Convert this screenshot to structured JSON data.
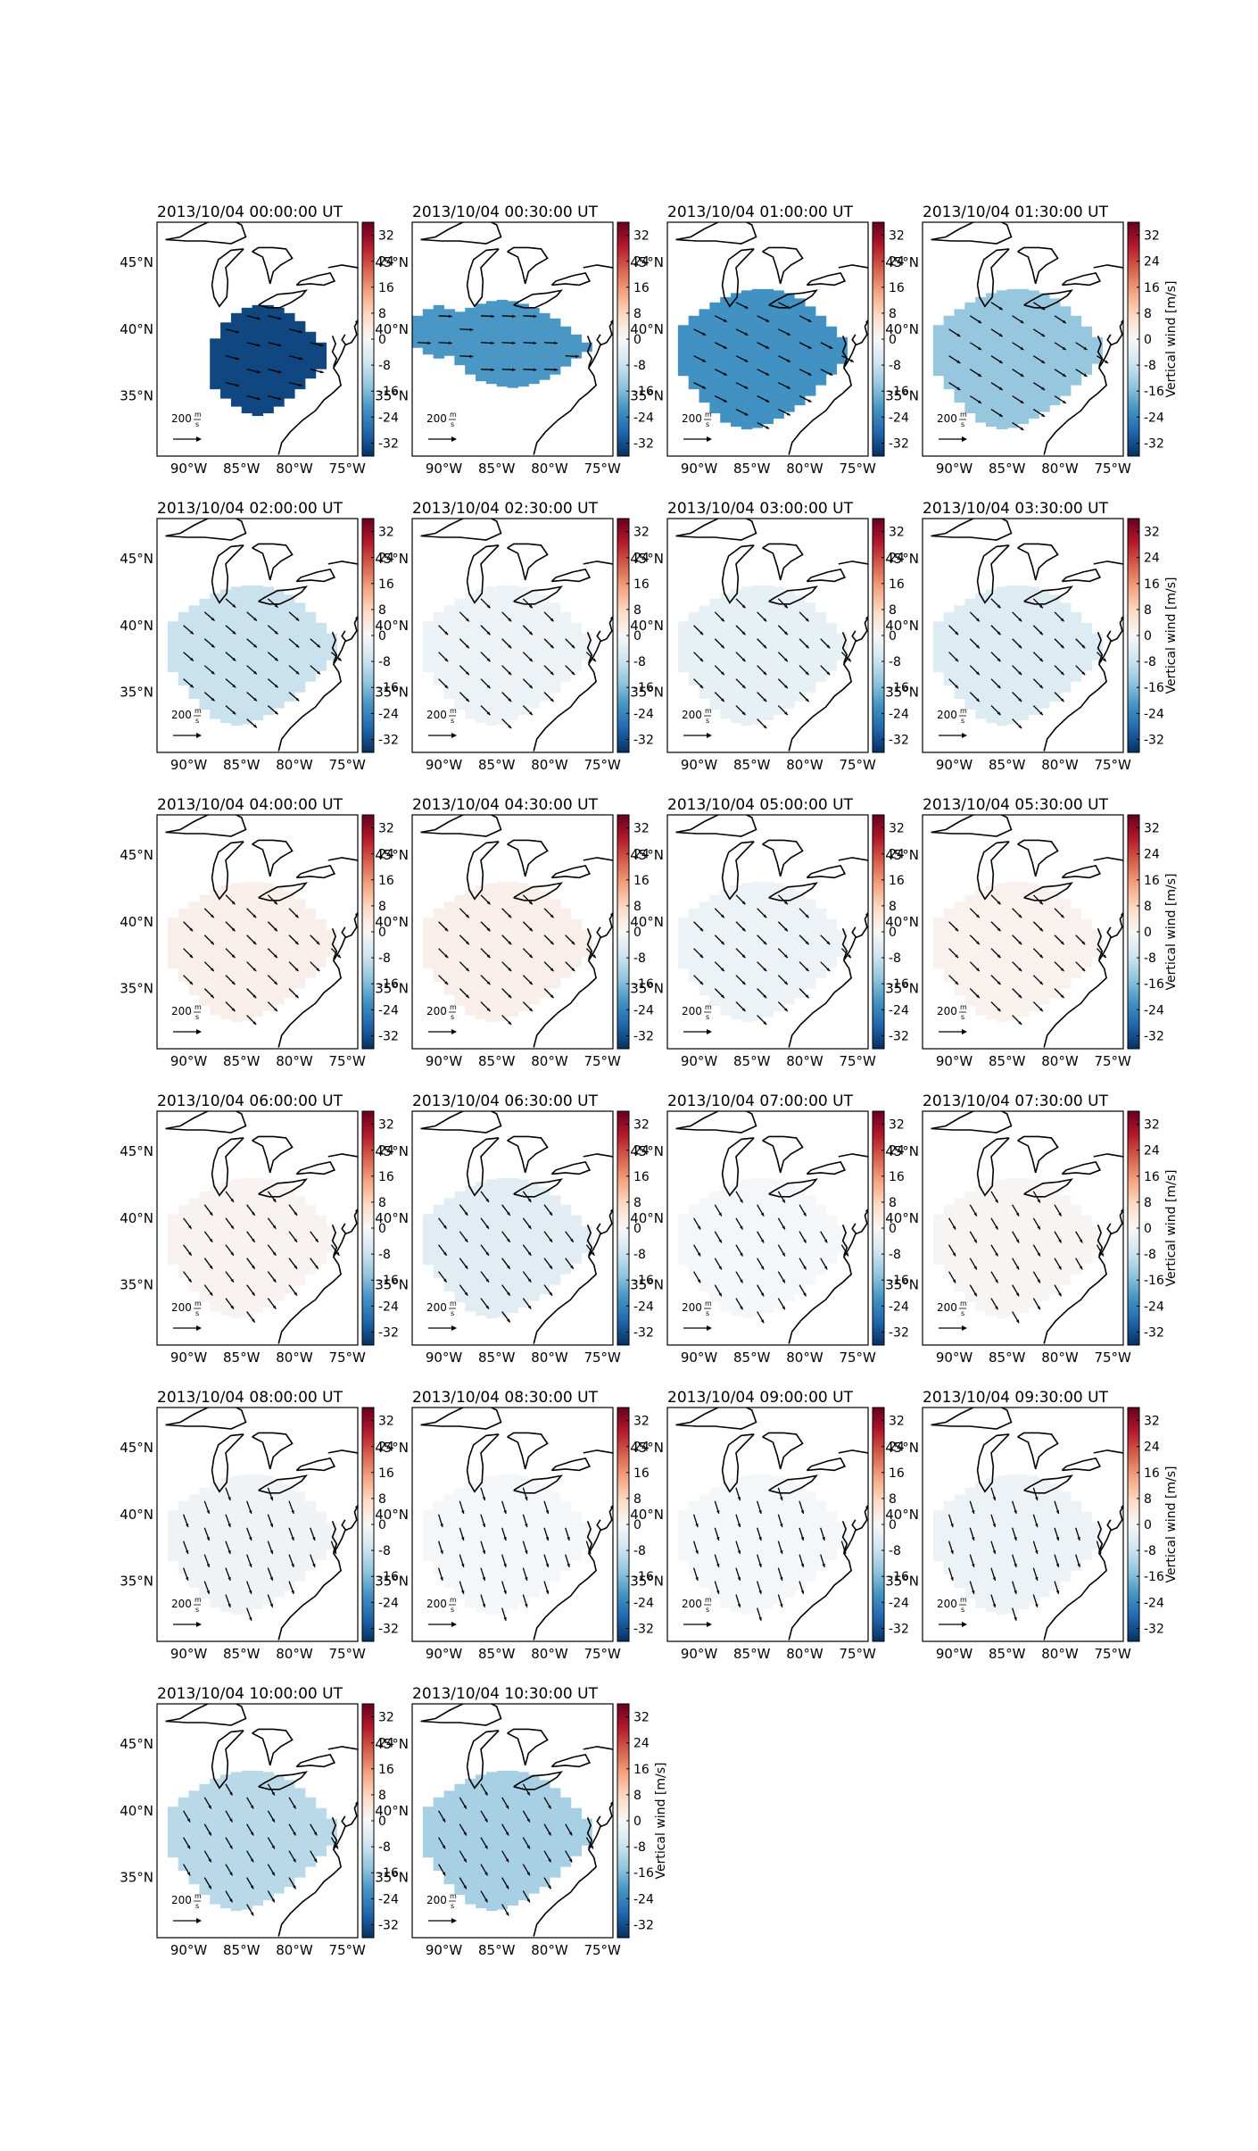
{
  "figure": {
    "colorbar_label": "Vertical wind [m/s]",
    "colorbar_ticks": [
      32,
      24,
      16,
      8,
      0,
      -8,
      -16,
      -24,
      -32
    ],
    "colorbar_range": [
      -36,
      36
    ],
    "colormap": [
      "#053061",
      "#2166ac",
      "#4393c3",
      "#92c5de",
      "#d1e5f0",
      "#f7f7f7",
      "#fddbc7",
      "#f4a582",
      "#d6604d",
      "#b2182b",
      "#67001f"
    ],
    "map_extent": {
      "lon": [
        -93,
        -74
      ],
      "lat": [
        30.5,
        48
      ]
    },
    "lon_ticks": [
      "90°W",
      "85°W",
      "80°W",
      "75°W"
    ],
    "lat_ticks": [
      "45°N",
      "40°N",
      "35°N"
    ],
    "scale_label": "200",
    "scale_unit_num": "m",
    "scale_unit_den": "s"
  },
  "chart_data": [
    {
      "type": "heatmap",
      "title": "2013/10/04 00:00:00 UT",
      "value": -33,
      "coverage": "east",
      "vector": [
        1.0,
        -0.25
      ]
    },
    {
      "type": "heatmap",
      "title": "2013/10/04 00:30:00 UT",
      "value": -21,
      "coverage": "wide",
      "vector": [
        1.0,
        -0.05
      ]
    },
    {
      "type": "heatmap",
      "title": "2013/10/04 01:00:00 UT",
      "value": -22,
      "coverage": "full",
      "vector": [
        0.9,
        -0.45
      ]
    },
    {
      "type": "heatmap",
      "title": "2013/10/04 01:30:00 UT",
      "value": -14,
      "coverage": "full",
      "vector": [
        0.85,
        -0.55
      ]
    },
    {
      "type": "heatmap",
      "title": "2013/10/04 02:00:00 UT",
      "value": -8,
      "coverage": "full",
      "vector": [
        0.75,
        -0.65
      ]
    },
    {
      "type": "heatmap",
      "title": "2013/10/04 02:30:00 UT",
      "value": -2,
      "coverage": "full",
      "vector": [
        0.7,
        -0.7
      ]
    },
    {
      "type": "heatmap",
      "title": "2013/10/04 03:00:00 UT",
      "value": -3,
      "coverage": "full",
      "vector": [
        0.7,
        -0.7
      ]
    },
    {
      "type": "heatmap",
      "title": "2013/10/04 03:30:00 UT",
      "value": -5,
      "coverage": "full",
      "vector": [
        0.7,
        -0.7
      ]
    },
    {
      "type": "heatmap",
      "title": "2013/10/04 04:00:00 UT",
      "value": 2,
      "coverage": "full",
      "vector": [
        0.7,
        -0.7
      ]
    },
    {
      "type": "heatmap",
      "title": "2013/10/04 04:30:00 UT",
      "value": 2,
      "coverage": "full",
      "vector": [
        0.7,
        -0.7
      ]
    },
    {
      "type": "heatmap",
      "title": "2013/10/04 05:00:00 UT",
      "value": -2,
      "coverage": "full",
      "vector": [
        0.7,
        -0.7
      ]
    },
    {
      "type": "heatmap",
      "title": "2013/10/04 05:30:00 UT",
      "value": 1.5,
      "coverage": "full",
      "vector": [
        0.7,
        -0.7
      ]
    },
    {
      "type": "heatmap",
      "title": "2013/10/04 06:00:00 UT",
      "value": 1,
      "coverage": "full",
      "vector": [
        0.6,
        -0.8
      ]
    },
    {
      "type": "heatmap",
      "title": "2013/10/04 06:30:00 UT",
      "value": -4,
      "coverage": "full",
      "vector": [
        0.6,
        -0.8
      ]
    },
    {
      "type": "heatmap",
      "title": "2013/10/04 07:00:00 UT",
      "value": -0.5,
      "coverage": "full",
      "vector": [
        0.5,
        -0.85
      ]
    },
    {
      "type": "heatmap",
      "title": "2013/10/04 07:30:00 UT",
      "value": 0.5,
      "coverage": "full",
      "vector": [
        0.5,
        -0.85
      ]
    },
    {
      "type": "heatmap",
      "title": "2013/10/04 08:00:00 UT",
      "value": -1.5,
      "coverage": "full",
      "vector": [
        0.35,
        -0.95
      ]
    },
    {
      "type": "heatmap",
      "title": "2013/10/04 08:30:00 UT",
      "value": -0.5,
      "coverage": "full",
      "vector": [
        0.3,
        -0.95
      ]
    },
    {
      "type": "heatmap",
      "title": "2013/10/04 09:00:00 UT",
      "value": -0.5,
      "coverage": "full",
      "vector": [
        0.3,
        -0.95
      ]
    },
    {
      "type": "heatmap",
      "title": "2013/10/04 09:30:00 UT",
      "value": -2,
      "coverage": "full",
      "vector": [
        0.3,
        -0.95
      ]
    },
    {
      "type": "heatmap",
      "title": "2013/10/04 10:00:00 UT",
      "value": -10,
      "coverage": "full",
      "vector": [
        0.5,
        -0.85
      ]
    },
    {
      "type": "heatmap",
      "title": "2013/10/04 10:30:00 UT",
      "value": -12,
      "coverage": "full",
      "vector": [
        0.5,
        -0.85
      ]
    }
  ]
}
